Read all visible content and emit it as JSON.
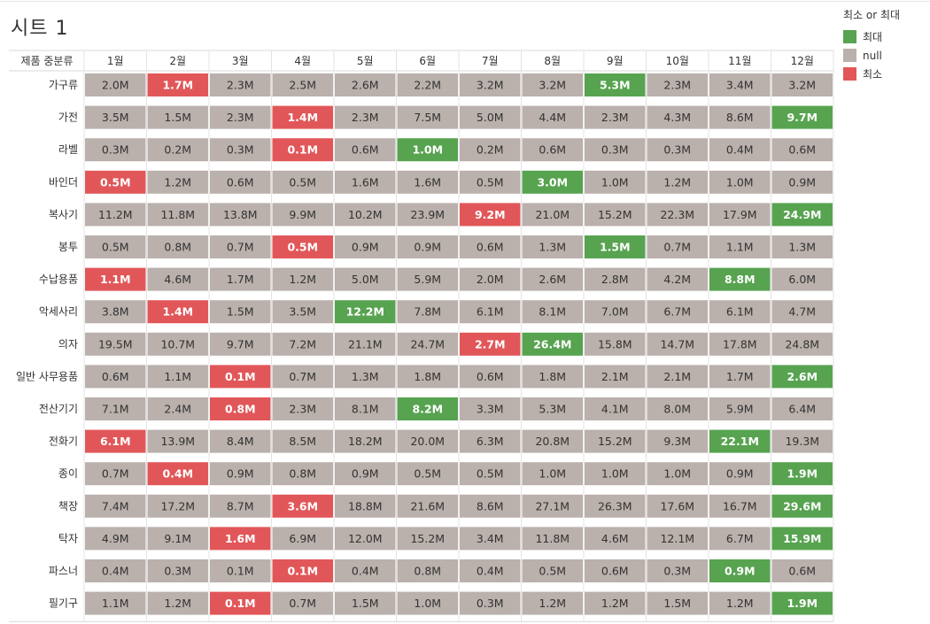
{
  "sheet_title": "시트 1",
  "colors": {
    "max": "#57a350",
    "null": "#bab0ac",
    "min": "#e15759"
  },
  "legend": {
    "title": "최소 or 최대",
    "items": [
      {
        "label": "최대",
        "key": "max"
      },
      {
        "label": "null",
        "key": "null"
      },
      {
        "label": "최소",
        "key": "min"
      }
    ]
  },
  "chart_data": {
    "type": "heatmap",
    "row_header": "제품 중분류",
    "columns": [
      "1월",
      "2월",
      "3월",
      "4월",
      "5월",
      "6월",
      "7월",
      "8월",
      "9월",
      "10월",
      "11월",
      "12월"
    ],
    "rows": [
      {
        "name": "가구류",
        "values": [
          "2.0M",
          "1.7M",
          "2.3M",
          "2.5M",
          "2.6M",
          "2.2M",
          "3.2M",
          "3.2M",
          "5.3M",
          "2.3M",
          "3.4M",
          "3.2M"
        ],
        "status": [
          "null",
          "min",
          "null",
          "null",
          "null",
          "null",
          "null",
          "null",
          "max",
          "null",
          "null",
          "null"
        ]
      },
      {
        "name": "가전",
        "values": [
          "3.5M",
          "1.5M",
          "2.3M",
          "1.4M",
          "2.3M",
          "7.5M",
          "5.0M",
          "4.4M",
          "2.3M",
          "4.3M",
          "8.6M",
          "9.7M"
        ],
        "status": [
          "null",
          "null",
          "null",
          "min",
          "null",
          "null",
          "null",
          "null",
          "null",
          "null",
          "null",
          "max"
        ]
      },
      {
        "name": "라벨",
        "values": [
          "0.3M",
          "0.2M",
          "0.3M",
          "0.1M",
          "0.6M",
          "1.0M",
          "0.2M",
          "0.6M",
          "0.3M",
          "0.3M",
          "0.4M",
          "0.6M"
        ],
        "status": [
          "null",
          "null",
          "null",
          "min",
          "null",
          "max",
          "null",
          "null",
          "null",
          "null",
          "null",
          "null"
        ]
      },
      {
        "name": "바인더",
        "values": [
          "0.5M",
          "1.2M",
          "0.6M",
          "0.5M",
          "1.6M",
          "1.6M",
          "0.5M",
          "3.0M",
          "1.0M",
          "1.2M",
          "1.0M",
          "0.9M"
        ],
        "status": [
          "min",
          "null",
          "null",
          "null",
          "null",
          "null",
          "null",
          "max",
          "null",
          "null",
          "null",
          "null"
        ]
      },
      {
        "name": "복사기",
        "values": [
          "11.2M",
          "11.8M",
          "13.8M",
          "9.9M",
          "10.2M",
          "23.9M",
          "9.2M",
          "21.0M",
          "15.2M",
          "22.3M",
          "17.9M",
          "24.9M"
        ],
        "status": [
          "null",
          "null",
          "null",
          "null",
          "null",
          "null",
          "min",
          "null",
          "null",
          "null",
          "null",
          "max"
        ]
      },
      {
        "name": "봉투",
        "values": [
          "0.5M",
          "0.8M",
          "0.7M",
          "0.5M",
          "0.9M",
          "0.9M",
          "0.6M",
          "1.3M",
          "1.5M",
          "0.7M",
          "1.1M",
          "1.3M"
        ],
        "status": [
          "null",
          "null",
          "null",
          "min",
          "null",
          "null",
          "null",
          "null",
          "max",
          "null",
          "null",
          "null"
        ]
      },
      {
        "name": "수납용품",
        "values": [
          "1.1M",
          "4.6M",
          "1.7M",
          "1.2M",
          "5.0M",
          "5.9M",
          "2.0M",
          "2.6M",
          "2.8M",
          "4.2M",
          "8.8M",
          "6.0M"
        ],
        "status": [
          "min",
          "null",
          "null",
          "null",
          "null",
          "null",
          "null",
          "null",
          "null",
          "null",
          "max",
          "null"
        ]
      },
      {
        "name": "악세사리",
        "values": [
          "3.8M",
          "1.4M",
          "1.5M",
          "3.5M",
          "12.2M",
          "7.8M",
          "6.1M",
          "8.1M",
          "7.0M",
          "6.7M",
          "6.1M",
          "4.7M"
        ],
        "status": [
          "null",
          "min",
          "null",
          "null",
          "max",
          "null",
          "null",
          "null",
          "null",
          "null",
          "null",
          "null"
        ]
      },
      {
        "name": "의자",
        "values": [
          "19.5M",
          "10.7M",
          "9.7M",
          "7.2M",
          "21.1M",
          "24.7M",
          "2.7M",
          "26.4M",
          "15.8M",
          "14.7M",
          "17.8M",
          "24.8M"
        ],
        "status": [
          "null",
          "null",
          "null",
          "null",
          "null",
          "null",
          "min",
          "max",
          "null",
          "null",
          "null",
          "null"
        ]
      },
      {
        "name": "일반 사무용품",
        "values": [
          "0.6M",
          "1.1M",
          "0.1M",
          "0.7M",
          "1.3M",
          "1.8M",
          "0.6M",
          "1.8M",
          "2.1M",
          "2.1M",
          "1.7M",
          "2.6M"
        ],
        "status": [
          "null",
          "null",
          "min",
          "null",
          "null",
          "null",
          "null",
          "null",
          "null",
          "null",
          "null",
          "max"
        ]
      },
      {
        "name": "전산기기",
        "values": [
          "7.1M",
          "2.4M",
          "0.8M",
          "2.3M",
          "8.1M",
          "8.2M",
          "3.3M",
          "5.3M",
          "4.1M",
          "8.0M",
          "5.9M",
          "6.4M"
        ],
        "status": [
          "null",
          "null",
          "min",
          "null",
          "null",
          "max",
          "null",
          "null",
          "null",
          "null",
          "null",
          "null"
        ]
      },
      {
        "name": "전화기",
        "values": [
          "6.1M",
          "13.9M",
          "8.4M",
          "8.5M",
          "18.2M",
          "20.0M",
          "6.3M",
          "20.8M",
          "15.2M",
          "9.3M",
          "22.1M",
          "19.3M"
        ],
        "status": [
          "min",
          "null",
          "null",
          "null",
          "null",
          "null",
          "null",
          "null",
          "null",
          "null",
          "max",
          "null"
        ]
      },
      {
        "name": "종이",
        "values": [
          "0.7M",
          "0.4M",
          "0.9M",
          "0.8M",
          "0.9M",
          "0.5M",
          "0.5M",
          "1.0M",
          "1.0M",
          "1.0M",
          "0.9M",
          "1.9M"
        ],
        "status": [
          "null",
          "min",
          "null",
          "null",
          "null",
          "null",
          "null",
          "null",
          "null",
          "null",
          "null",
          "max"
        ]
      },
      {
        "name": "책장",
        "values": [
          "7.4M",
          "17.2M",
          "8.7M",
          "3.6M",
          "18.8M",
          "21.6M",
          "8.6M",
          "27.1M",
          "26.3M",
          "17.6M",
          "16.7M",
          "29.6M"
        ],
        "status": [
          "null",
          "null",
          "null",
          "min",
          "null",
          "null",
          "null",
          "null",
          "null",
          "null",
          "null",
          "max"
        ]
      },
      {
        "name": "탁자",
        "values": [
          "4.9M",
          "9.1M",
          "1.6M",
          "6.9M",
          "12.0M",
          "15.2M",
          "3.4M",
          "11.8M",
          "4.6M",
          "12.1M",
          "6.7M",
          "15.9M"
        ],
        "status": [
          "null",
          "null",
          "min",
          "null",
          "null",
          "null",
          "null",
          "null",
          "null",
          "null",
          "null",
          "max"
        ]
      },
      {
        "name": "파스너",
        "values": [
          "0.4M",
          "0.3M",
          "0.1M",
          "0.1M",
          "0.4M",
          "0.8M",
          "0.4M",
          "0.5M",
          "0.6M",
          "0.3M",
          "0.9M",
          "0.6M"
        ],
        "status": [
          "null",
          "null",
          "null",
          "min",
          "null",
          "null",
          "null",
          "null",
          "null",
          "null",
          "max",
          "null"
        ]
      },
      {
        "name": "필기구",
        "values": [
          "1.1M",
          "1.2M",
          "0.1M",
          "0.7M",
          "1.5M",
          "1.0M",
          "0.3M",
          "1.2M",
          "1.2M",
          "1.5M",
          "1.2M",
          "1.9M"
        ],
        "status": [
          "null",
          "null",
          "min",
          "null",
          "null",
          "null",
          "null",
          "null",
          "null",
          "null",
          "null",
          "max"
        ]
      }
    ]
  }
}
